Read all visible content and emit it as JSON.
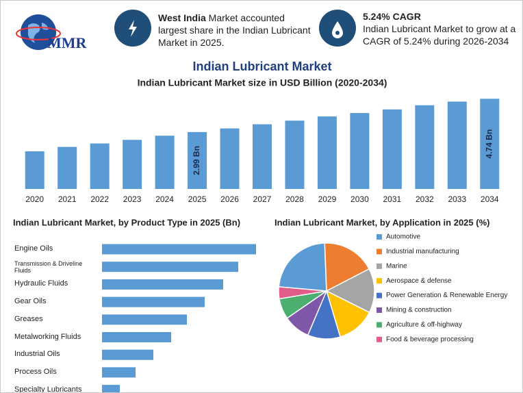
{
  "header": {
    "logo": "MMR",
    "cards": [
      {
        "highlight": "West India",
        "text": " Market accounted largest share in the Indian Lubricant Market in 2025."
      },
      {
        "title": "5.24% CAGR",
        "text": "Indian Lubricant Market to grow at a CAGR of 5.24% during 2026-2034"
      }
    ]
  },
  "chart_data": [
    {
      "type": "bar",
      "title": "Indian Lubricant Market",
      "subtitle": "Indian Lubricant Market size in USD Billion (2020-2034)",
      "categories": [
        "2020",
        "2021",
        "2022",
        "2023",
        "2024",
        "2025",
        "2026",
        "2027",
        "2028",
        "2029",
        "2030",
        "2031",
        "2032",
        "2033",
        "2034"
      ],
      "values": [
        1.98,
        2.21,
        2.39,
        2.58,
        2.8,
        2.99,
        3.18,
        3.4,
        3.59,
        3.81,
        3.99,
        4.18,
        4.4,
        4.59,
        4.74
      ],
      "value_labels": [
        null,
        null,
        null,
        null,
        null,
        "2.99 Bn",
        null,
        null,
        null,
        null,
        null,
        null,
        null,
        null,
        "4.74 Bn"
      ],
      "color": "#5b9bd5",
      "ylim": [
        0,
        5
      ]
    },
    {
      "type": "hbar",
      "title": "Indian Lubricant Market, by Product Type in 2025 (Bn)",
      "categories": [
        "Engine Oils",
        "Transmission & Driveline Fluids",
        "Hydraulic Fluids",
        "Gear Oils",
        "Greases",
        "Metalworking Fluids",
        "Industrial Oils",
        "Process Oils",
        "Specialty Lubricants"
      ],
      "values": [
        225,
        199,
        177,
        150,
        124,
        101,
        75,
        49,
        26
      ],
      "color": "#5b9bd5",
      "xlim": [
        0,
        225
      ]
    },
    {
      "type": "pie",
      "title": "Indian Lubricant Market, by Application in 2025 (%)",
      "categories": [
        "Automotive",
        "Industrial manufacturing",
        "Marine",
        "Aerospace & defense",
        "Power Generation & Renewable Energy",
        "Mining & construction",
        "Agriculture & off-highway",
        "Food & beverage processing"
      ],
      "values": [
        23,
        18,
        15,
        13,
        11,
        9,
        7,
        4
      ],
      "colors": [
        "#5b9bd5",
        "#ed7d31",
        "#a5a5a5",
        "#ffc000",
        "#4472c4",
        "#7e57a8",
        "#4caf70",
        "#e05c8a"
      ]
    }
  ]
}
